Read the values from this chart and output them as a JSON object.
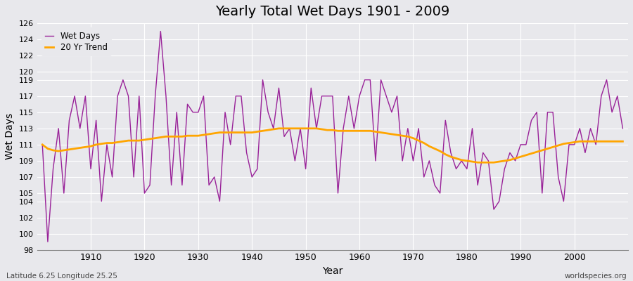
{
  "title": "Yearly Total Wet Days 1901 - 2009",
  "xlabel": "Year",
  "ylabel": "Wet Days",
  "footnote_left": "Latitude 6.25 Longitude 25.25",
  "footnote_right": "worldspecies.org",
  "ylim": [
    98,
    126
  ],
  "years": [
    1901,
    1902,
    1903,
    1904,
    1905,
    1906,
    1907,
    1908,
    1909,
    1910,
    1911,
    1912,
    1913,
    1914,
    1915,
    1916,
    1917,
    1918,
    1919,
    1920,
    1921,
    1922,
    1923,
    1924,
    1925,
    1926,
    1927,
    1928,
    1929,
    1930,
    1931,
    1932,
    1933,
    1934,
    1935,
    1936,
    1937,
    1938,
    1939,
    1940,
    1941,
    1942,
    1943,
    1944,
    1945,
    1946,
    1947,
    1948,
    1949,
    1950,
    1951,
    1952,
    1953,
    1954,
    1955,
    1956,
    1957,
    1958,
    1959,
    1960,
    1961,
    1962,
    1963,
    1964,
    1965,
    1966,
    1967,
    1968,
    1969,
    1970,
    1971,
    1972,
    1973,
    1974,
    1975,
    1976,
    1977,
    1978,
    1979,
    1980,
    1981,
    1982,
    1983,
    1984,
    1985,
    1986,
    1987,
    1988,
    1989,
    1990,
    1991,
    1992,
    1993,
    1994,
    1995,
    1996,
    1997,
    1998,
    1999,
    2000,
    2001,
    2002,
    2003,
    2004,
    2005,
    2006,
    2007,
    2008,
    2009
  ],
  "wet_days": [
    111,
    99,
    108,
    113,
    105,
    114,
    117,
    113,
    117,
    108,
    114,
    104,
    111,
    107,
    117,
    119,
    117,
    107,
    117,
    105,
    106,
    117,
    125,
    117,
    106,
    115,
    106,
    116,
    115,
    115,
    117,
    106,
    107,
    104,
    115,
    111,
    117,
    117,
    110,
    107,
    108,
    119,
    115,
    113,
    118,
    112,
    113,
    109,
    113,
    108,
    118,
    113,
    117,
    117,
    117,
    105,
    113,
    117,
    113,
    117,
    119,
    119,
    109,
    119,
    117,
    115,
    117,
    109,
    113,
    109,
    113,
    107,
    109,
    106,
    105,
    114,
    110,
    108,
    109,
    108,
    113,
    106,
    110,
    109,
    103,
    104,
    108,
    110,
    109,
    111,
    111,
    114,
    115,
    105,
    115,
    115,
    107,
    104,
    111,
    111,
    113,
    110,
    113,
    111,
    117,
    119,
    115,
    117,
    113
  ],
  "trend_years": [
    1901,
    1902,
    1903,
    1904,
    1905,
    1906,
    1907,
    1908,
    1909,
    1910,
    1911,
    1912,
    1913,
    1914,
    1915,
    1916,
    1917,
    1918,
    1919,
    1920,
    1921,
    1922,
    1923,
    1924,
    1925,
    1926,
    1927,
    1928,
    1929,
    1930,
    1931,
    1932,
    1933,
    1934,
    1935,
    1936,
    1937,
    1938,
    1939,
    1940,
    1941,
    1942,
    1943,
    1944,
    1945,
    1946,
    1947,
    1948,
    1949,
    1950,
    1951,
    1952,
    1953,
    1954,
    1955,
    1956,
    1957,
    1958,
    1959,
    1960,
    1961,
    1962,
    1963,
    1964,
    1965,
    1966,
    1967,
    1968,
    1969,
    1970,
    1971,
    1972,
    1973,
    1974,
    1975,
    1976,
    1977,
    1978,
    1979,
    1980,
    1981,
    1982,
    1983,
    1984,
    1985,
    1986,
    1987,
    1988,
    1989,
    1990,
    1991,
    1992,
    1993,
    1994,
    1995,
    1996,
    1997,
    1998,
    1999,
    2000,
    2001,
    2002,
    2003,
    2004,
    2005,
    2006,
    2007,
    2008,
    2009
  ],
  "trend_values": [
    111.0,
    110.5,
    110.3,
    110.2,
    110.3,
    110.4,
    110.5,
    110.6,
    110.7,
    110.8,
    111.0,
    111.1,
    111.2,
    111.2,
    111.3,
    111.4,
    111.5,
    111.5,
    111.5,
    111.6,
    111.7,
    111.8,
    111.9,
    112.0,
    112.0,
    112.0,
    112.0,
    112.1,
    112.1,
    112.1,
    112.2,
    112.3,
    112.4,
    112.5,
    112.5,
    112.5,
    112.5,
    112.5,
    112.5,
    112.5,
    112.6,
    112.7,
    112.8,
    112.9,
    113.0,
    113.0,
    113.0,
    113.0,
    113.0,
    113.0,
    113.0,
    113.0,
    112.9,
    112.8,
    112.8,
    112.7,
    112.7,
    112.7,
    112.7,
    112.7,
    112.7,
    112.7,
    112.6,
    112.5,
    112.4,
    112.3,
    112.2,
    112.1,
    112.0,
    111.8,
    111.5,
    111.2,
    110.8,
    110.5,
    110.2,
    109.8,
    109.5,
    109.3,
    109.1,
    109.0,
    108.9,
    108.8,
    108.8,
    108.8,
    108.8,
    108.9,
    109.0,
    109.1,
    109.3,
    109.5,
    109.7,
    109.9,
    110.1,
    110.3,
    110.5,
    110.7,
    110.9,
    111.1,
    111.2,
    111.3,
    111.4,
    111.4,
    111.4,
    111.4,
    111.4,
    111.4,
    111.4,
    111.4,
    111.4
  ],
  "yticks": [
    98,
    100,
    102,
    104,
    105,
    107,
    109,
    111,
    113,
    115,
    117,
    119,
    120,
    122,
    124,
    126
  ],
  "xticks": [
    1910,
    1920,
    1930,
    1940,
    1950,
    1960,
    1970,
    1980,
    1990,
    2000
  ],
  "wet_days_color": "#992299",
  "trend_color": "#FFA500",
  "bg_color": "#E8E8EC",
  "grid_color": "#ffffff"
}
